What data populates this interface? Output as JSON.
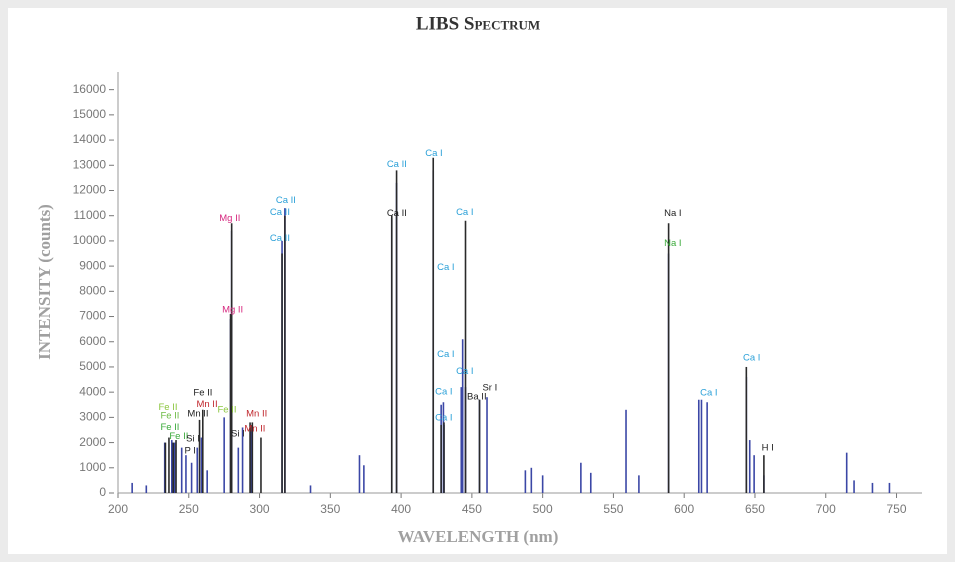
{
  "chart_data": {
    "type": "spectrum",
    "title": "LIBS Spectrum",
    "xlabel": "WAVELENGTH (nm)",
    "ylabel": "INTENSITY (counts)",
    "xlim": [
      200,
      768
    ],
    "xticks": [
      200,
      250,
      300,
      350,
      400,
      450,
      500,
      550,
      600,
      650,
      700,
      750
    ],
    "ylim": [
      0,
      16700
    ],
    "yticks": [
      0,
      1000,
      2000,
      3000,
      4000,
      5000,
      6000,
      7000,
      8000,
      9000,
      10000,
      11000,
      12000,
      13000,
      14000,
      15000,
      16000
    ],
    "grid": false,
    "series": [
      {
        "color": "#3b47a6",
        "x": [
          210,
          220,
          233,
          238,
          240,
          245,
          248,
          252,
          256,
          259,
          263,
          275,
          279.5,
          280.3,
          285,
          288,
          294,
          315.9,
          317.9,
          336,
          370.6,
          373.7,
          393.4,
          396.8,
          422.7,
          428.3,
          429.9,
          430.3,
          442.5,
          443.5,
          445.5,
          455.4,
          460.7,
          487.8,
          492,
          500,
          527,
          534,
          558.9,
          568,
          588.99,
          610.3,
          612.2,
          616.2,
          643.9,
          646.3,
          649.4,
          656.3,
          714.8,
          720,
          733,
          745
        ],
        "values": [
          400,
          300,
          2000,
          2100,
          2000,
          1800,
          1500,
          1200,
          1800,
          2200,
          900,
          3000,
          6900,
          10400,
          1800,
          2600,
          2500,
          10000,
          11300,
          300,
          1500,
          1100,
          10900,
          12300,
          12800,
          3500,
          3600,
          2700,
          4200,
          6100,
          4200,
          3700,
          3800,
          900,
          1000,
          700,
          1200,
          800,
          3300,
          700,
          9500,
          3700,
          3700,
          3600,
          4600,
          2100,
          1500,
          700,
          1600,
          500,
          400,
          400
        ]
      },
      {
        "color": "#2a2a2a",
        "x": [
          233.5,
          236,
          239,
          241,
          257.6,
          259.9,
          279.5,
          280.3,
          293.3,
          294.9,
          301,
          315.9,
          317.9,
          393.4,
          396.8,
          422.7,
          428.3,
          430.3,
          445.5,
          455.4,
          588.99,
          643.9,
          656.3
        ],
        "values": [
          2000,
          2200,
          2000,
          2100,
          2900,
          3300,
          7100,
          10700,
          2800,
          2800,
          2200,
          9500,
          11000,
          11000,
          12800,
          13300,
          2700,
          2800,
          10800,
          3700,
          10700,
          5000,
          1500
        ]
      }
    ],
    "annotations": [
      {
        "text": "Fe II",
        "x": 235.3,
        "y": 3400,
        "color": "#8cc63f"
      },
      {
        "text": "Fe II",
        "x": 236.7,
        "y": 3050,
        "color": "#6dbb45"
      },
      {
        "text": "Fe II",
        "x": 236.7,
        "y": 2600,
        "color": "#3aaa3a"
      },
      {
        "text": "Fe II",
        "x": 243,
        "y": 2250,
        "color": "#3aaa3a"
      },
      {
        "text": "Mn II",
        "x": 256.5,
        "y": 3130,
        "color": "#222222"
      },
      {
        "text": "Fe II",
        "x": 260,
        "y": 3960,
        "color": "#222222"
      },
      {
        "text": "Mn II",
        "x": 262.9,
        "y": 3520,
        "color": "#c0272d"
      },
      {
        "text": "Si I",
        "x": 253,
        "y": 2140,
        "color": "#222222"
      },
      {
        "text": "P I",
        "x": 251,
        "y": 1660,
        "color": "#222222"
      },
      {
        "text": "Fe II",
        "x": 277,
        "y": 3290,
        "color": "#8cc63f"
      },
      {
        "text": "Mg II",
        "x": 279,
        "y": 10890,
        "color": "#d6287f"
      },
      {
        "text": "Mg II",
        "x": 281,
        "y": 7250,
        "color": "#d6287f"
      },
      {
        "text": "Si I",
        "x": 284.7,
        "y": 2340,
        "color": "#222222"
      },
      {
        "text": "Mn II",
        "x": 298,
        "y": 3130,
        "color": "#c0272d"
      },
      {
        "text": "Mn II",
        "x": 296.7,
        "y": 2530,
        "color": "#c0272d"
      },
      {
        "text": "Ca II",
        "x": 318.6,
        "y": 11600,
        "color": "#2aa0d8"
      },
      {
        "text": "Ca II",
        "x": 314.4,
        "y": 11130,
        "color": "#2aa0d8"
      },
      {
        "text": "Ca II",
        "x": 314.4,
        "y": 10100,
        "color": "#2aa0d8"
      },
      {
        "text": "Ca II",
        "x": 397,
        "y": 11090,
        "color": "#222222"
      },
      {
        "text": "Ca II",
        "x": 397,
        "y": 13030,
        "color": "#2aa0d8"
      },
      {
        "text": "Ca I",
        "x": 423.2,
        "y": 13470,
        "color": "#2aa0d8"
      },
      {
        "text": "Ca I",
        "x": 445,
        "y": 11130,
        "color": "#2aa0d8"
      },
      {
        "text": "Ca I",
        "x": 431.6,
        "y": 8950,
        "color": "#2aa0d8"
      },
      {
        "text": "Ca I",
        "x": 431.6,
        "y": 5500,
        "color": "#2aa0d8"
      },
      {
        "text": "Ca I",
        "x": 430.2,
        "y": 4000,
        "color": "#2aa0d8"
      },
      {
        "text": "Ca I",
        "x": 430.2,
        "y": 2970,
        "color": "#2aa0d8"
      },
      {
        "text": "Ca I",
        "x": 445,
        "y": 4830,
        "color": "#2aa0d8"
      },
      {
        "text": "Ba II",
        "x": 453.5,
        "y": 3800,
        "color": "#222222"
      },
      {
        "text": "Sr I",
        "x": 462.7,
        "y": 4160,
        "color": "#222222"
      },
      {
        "text": "Na I",
        "x": 592,
        "y": 11090,
        "color": "#222222"
      },
      {
        "text": "Na I",
        "x": 592,
        "y": 9900,
        "color": "#3aaa3a"
      },
      {
        "text": "Ca I",
        "x": 617.4,
        "y": 3960,
        "color": "#2aa0d8"
      },
      {
        "text": "Ca I",
        "x": 647.7,
        "y": 5350,
        "color": "#2aa0d8"
      },
      {
        "text": "H I",
        "x": 659,
        "y": 1780,
        "color": "#222222"
      }
    ]
  }
}
